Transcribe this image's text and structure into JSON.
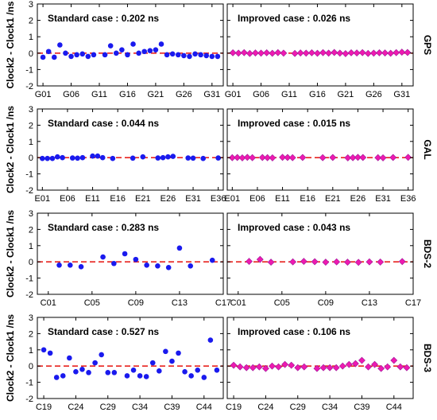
{
  "colors": {
    "standard_marker": "#1a1aee",
    "improved_marker": "#ee1ab0",
    "improved_marker_edge": "#9a1a9a",
    "zero_line": "#e8231f",
    "frame": "#000000"
  },
  "chart_data": [
    {
      "type": "scatter",
      "system": "GPS",
      "ylabel": "Clock2 - Clock1  /ns",
      "ylim": [
        -2,
        3
      ],
      "yticks": [
        -2,
        -1,
        0,
        1,
        2,
        3
      ],
      "xlim": [
        0,
        33
      ],
      "xticks": [
        1,
        6,
        11,
        16,
        21,
        26,
        31
      ],
      "xticklabels": [
        "G01",
        "G06",
        "G11",
        "G16",
        "G21",
        "G26",
        "G31"
      ],
      "reference_line": 0,
      "panels": [
        {
          "annotation": "Standard case : 0.202 ns",
          "marker": "circle",
          "x": [
            1,
            2,
            3,
            4,
            5,
            6,
            7,
            8,
            9,
            10,
            12,
            13,
            14,
            15,
            16,
            17,
            18,
            19,
            20,
            21,
            22,
            23,
            24,
            25,
            26,
            27,
            28,
            29,
            30,
            31,
            32
          ],
          "y": [
            -0.25,
            0.1,
            -0.25,
            0.5,
            0.0,
            -0.2,
            -0.1,
            -0.05,
            -0.2,
            -0.1,
            -0.1,
            0.45,
            0.0,
            0.2,
            -0.1,
            0.55,
            0.0,
            0.1,
            0.15,
            0.2,
            0.55,
            -0.1,
            -0.05,
            -0.1,
            -0.15,
            -0.2,
            -0.05,
            -0.1,
            -0.15,
            -0.2,
            -0.2
          ]
        },
        {
          "annotation": "Improved case : 0.026 ns",
          "marker": "diamond",
          "x": [
            1,
            2,
            3,
            4,
            5,
            6,
            7,
            8,
            9,
            10,
            12,
            13,
            14,
            15,
            16,
            17,
            18,
            19,
            20,
            21,
            22,
            23,
            24,
            25,
            26,
            27,
            28,
            29,
            30,
            31,
            32
          ],
          "y": [
            0.02,
            0.0,
            0.03,
            -0.02,
            0.01,
            0.0,
            0.02,
            -0.01,
            0.03,
            0.0,
            -0.02,
            0.01,
            0.0,
            0.02,
            -0.01,
            0.03,
            0.0,
            0.04,
            0.0,
            -0.03,
            0.02,
            0.01,
            0.03,
            -0.02,
            0.0,
            0.02,
            0.01,
            -0.01,
            0.03,
            0.06,
            0.04
          ]
        }
      ]
    },
    {
      "type": "scatter",
      "system": "GAL",
      "ylabel": "Clock2 - Clock1  /ns",
      "ylim": [
        -2,
        3
      ],
      "yticks": [
        -2,
        -1,
        0,
        1,
        2,
        3
      ],
      "xlim": [
        0,
        37
      ],
      "xticks": [
        1,
        6,
        11,
        16,
        21,
        26,
        31,
        36
      ],
      "xticklabels": [
        "E01",
        "E06",
        "E11",
        "E16",
        "E21",
        "E26",
        "E31",
        "E36"
      ],
      "reference_line": 0,
      "panels": [
        {
          "annotation": "Standard case : 0.044 ns",
          "marker": "circle",
          "x": [
            1,
            2,
            3,
            4,
            5,
            7,
            8,
            9,
            11,
            12,
            13,
            15,
            19,
            21,
            24,
            25,
            26,
            27,
            30,
            31,
            33,
            36
          ],
          "y": [
            -0.05,
            -0.05,
            -0.05,
            0.05,
            0.0,
            -0.02,
            -0.03,
            0.0,
            0.1,
            0.1,
            0.0,
            -0.05,
            -0.03,
            0.05,
            -0.02,
            0.0,
            0.05,
            0.08,
            -0.02,
            -0.03,
            -0.05,
            -0.02
          ]
        },
        {
          "annotation": "Improved case : 0.015 ns",
          "marker": "diamond",
          "x": [
            1,
            2,
            3,
            4,
            5,
            7,
            8,
            9,
            11,
            12,
            13,
            15,
            19,
            21,
            24,
            25,
            26,
            27,
            30,
            31,
            33,
            36
          ],
          "y": [
            0.0,
            0.01,
            -0.01,
            0.02,
            0.0,
            0.01,
            0.0,
            -0.01,
            0.02,
            0.01,
            0.0,
            0.01,
            0.0,
            0.01,
            -0.01,
            0.0,
            0.02,
            0.01,
            0.0,
            -0.01,
            0.01,
            0.02
          ]
        }
      ]
    },
    {
      "type": "scatter",
      "system": "BDS-2",
      "ylabel": "Clock2 - Clock1  /ns",
      "ylim": [
        -2,
        3
      ],
      "yticks": [
        -2,
        -1,
        0,
        1,
        2,
        3
      ],
      "xlim": [
        0,
        17
      ],
      "xticks": [
        1,
        5,
        9,
        13,
        17
      ],
      "xticklabels": [
        "C01",
        "C05",
        "C09",
        "C13",
        "C17"
      ],
      "reference_line": 0,
      "panels": [
        {
          "annotation": "Standard case : 0.283 ns",
          "marker": "circle",
          "x": [
            2,
            3,
            4,
            6,
            7,
            8,
            9,
            10,
            11,
            12,
            13,
            14,
            16
          ],
          "y": [
            -0.2,
            -0.2,
            -0.3,
            0.3,
            -0.1,
            0.5,
            0.15,
            -0.2,
            -0.25,
            -0.35,
            0.85,
            -0.25,
            0.1
          ]
        },
        {
          "annotation": "Improved case : 0.043 ns",
          "marker": "diamond",
          "x": [
            2,
            3,
            4,
            6,
            7,
            8,
            9,
            10,
            11,
            12,
            13,
            14,
            16
          ],
          "y": [
            0.03,
            0.15,
            -0.02,
            0.0,
            0.03,
            0.01,
            -0.02,
            0.0,
            -0.02,
            -0.03,
            0.0,
            -0.01,
            0.02
          ]
        }
      ]
    },
    {
      "type": "scatter",
      "system": "BDS-3",
      "ylabel": "Clock2 - Clock1  /ns",
      "ylim": [
        -2,
        3
      ],
      "yticks": [
        -2,
        -1,
        0,
        1,
        2,
        3
      ],
      "xlim": [
        18,
        47
      ],
      "xticks": [
        19,
        24,
        29,
        34,
        39,
        44
      ],
      "xticklabels": [
        "C19",
        "C24",
        "C29",
        "C34",
        "C39",
        "C44"
      ],
      "reference_line": 0,
      "panels": [
        {
          "annotation": "Standard case : 0.527 ns",
          "marker": "circle",
          "x": [
            19,
            20,
            21,
            22,
            23,
            24,
            25,
            26,
            27,
            28,
            29,
            30,
            32,
            33,
            34,
            35,
            36,
            37,
            38,
            39,
            40,
            41,
            42,
            43,
            44,
            45,
            46
          ],
          "y": [
            1.0,
            0.8,
            -0.7,
            -0.6,
            0.5,
            -0.35,
            -0.2,
            -0.4,
            0.2,
            0.7,
            -0.4,
            -0.4,
            -0.6,
            -0.25,
            -0.6,
            -0.65,
            0.2,
            -0.3,
            0.9,
            0.3,
            0.8,
            -0.35,
            -0.6,
            -0.25,
            -0.7,
            1.6,
            -0.25
          ]
        },
        {
          "annotation": "Improved case : 0.106 ns",
          "marker": "diamond",
          "x": [
            19,
            20,
            21,
            22,
            23,
            24,
            25,
            26,
            27,
            28,
            29,
            30,
            32,
            33,
            34,
            35,
            36,
            37,
            38,
            39,
            40,
            41,
            42,
            43,
            44,
            45,
            46
          ],
          "y": [
            0.05,
            -0.05,
            -0.1,
            -0.1,
            -0.05,
            -0.15,
            0.0,
            -0.05,
            0.1,
            0.05,
            -0.1,
            -0.05,
            -0.15,
            -0.1,
            -0.1,
            -0.1,
            0.0,
            0.1,
            0.15,
            0.35,
            -0.05,
            0.1,
            -0.15,
            -0.05,
            0.35,
            -0.05,
            -0.1
          ]
        }
      ]
    }
  ]
}
